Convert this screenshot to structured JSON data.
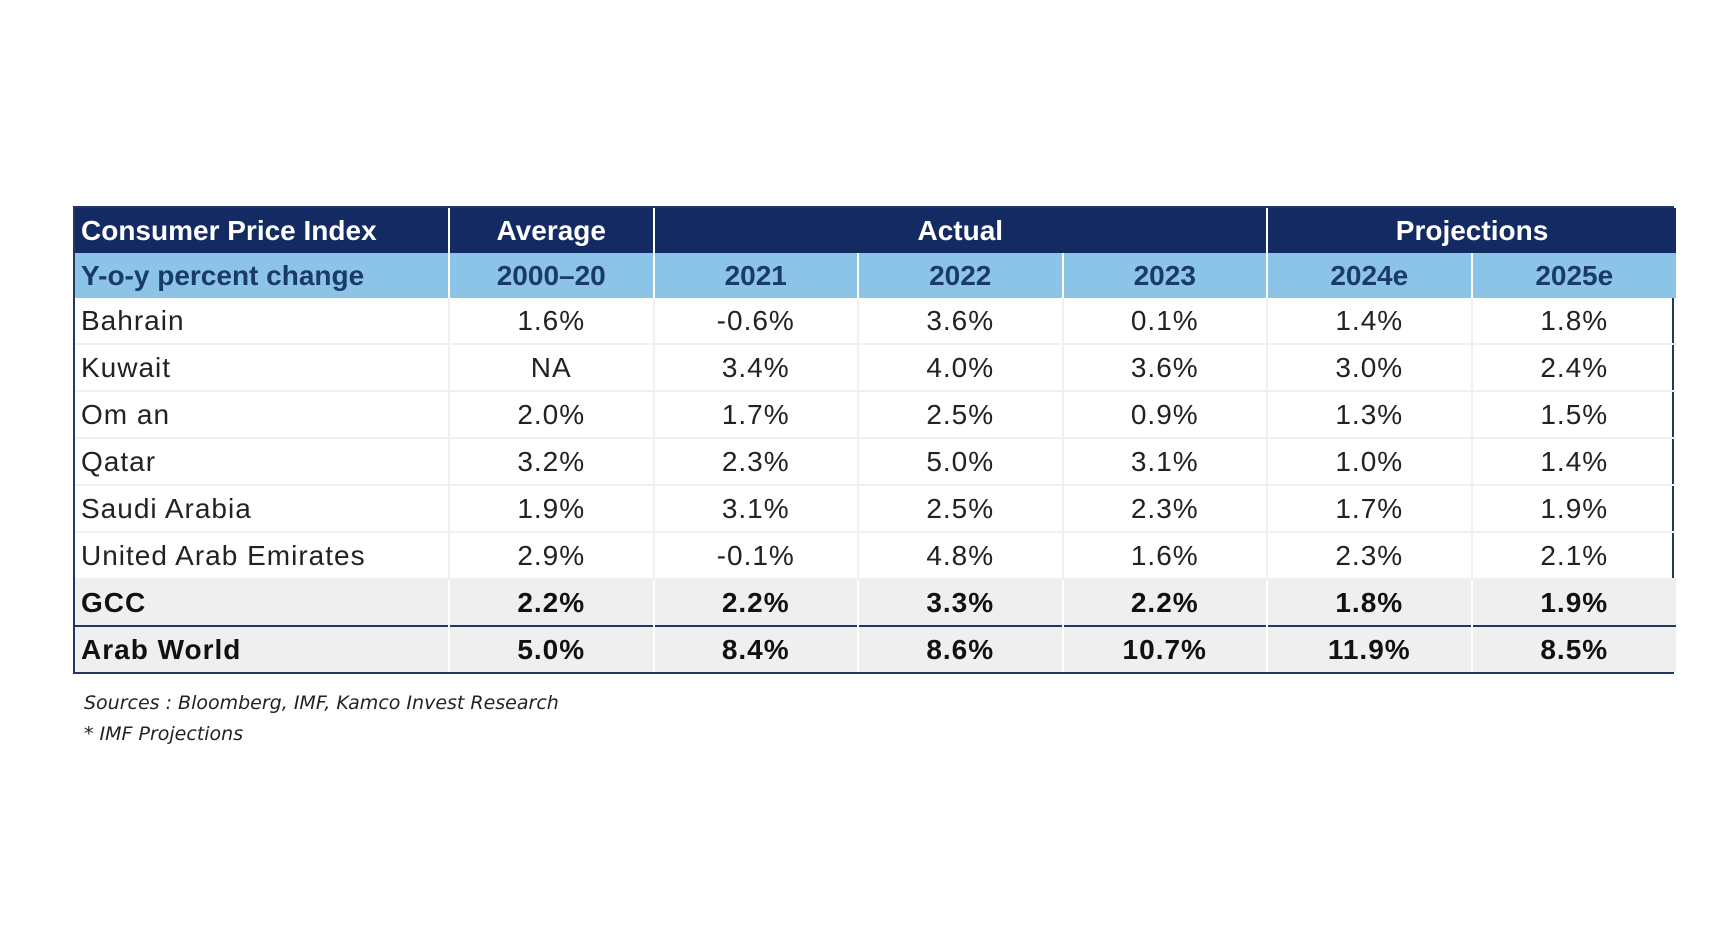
{
  "chart_data": {
    "type": "table",
    "header_row1": {
      "label": "Consumer Price Index",
      "average": "Average",
      "actual": "Actual",
      "projections": "Projections"
    },
    "header_row2": {
      "label": "Y-o-y percent change",
      "columns": [
        "2000–20",
        "2021",
        "2022",
        "2023",
        "2024e",
        "2025e"
      ]
    },
    "rows": [
      {
        "label": "Bahrain",
        "values": [
          "1.6%",
          "-0.6%",
          "3.6%",
          "0.1%",
          "1.4%",
          "1.8%"
        ]
      },
      {
        "label": "Kuwait",
        "values": [
          "NA",
          "3.4%",
          "4.0%",
          "3.6%",
          "3.0%",
          "2.4%"
        ]
      },
      {
        "label": "Om an",
        "values": [
          "2.0%",
          "1.7%",
          "2.5%",
          "0.9%",
          "1.3%",
          "1.5%"
        ]
      },
      {
        "label": "Qatar",
        "values": [
          "3.2%",
          "2.3%",
          "5.0%",
          "3.1%",
          "1.0%",
          "1.4%"
        ]
      },
      {
        "label": "Saudi Arabia",
        "values": [
          "1.9%",
          "3.1%",
          "2.5%",
          "2.3%",
          "1.7%",
          "1.9%"
        ]
      },
      {
        "label": "United Arab Emirates",
        "values": [
          "2.9%",
          "-0.1%",
          "4.8%",
          "1.6%",
          "2.3%",
          "2.1%"
        ]
      }
    ],
    "totals": [
      {
        "label": "GCC",
        "values": [
          "2.2%",
          "2.2%",
          "3.3%",
          "2.2%",
          "1.8%",
          "1.9%"
        ]
      },
      {
        "label": "Arab World",
        "values": [
          "5.0%",
          "8.4%",
          "8.6%",
          "10.7%",
          "11.9%",
          "8.5%"
        ]
      }
    ]
  },
  "notes": {
    "sources": "Sources : Bloomberg, IMF, Kamco Invest Research",
    "footnote": "* IMF Projections"
  },
  "colors": {
    "header_dark": "#132a63",
    "header_light": "#8cc4e8",
    "total_row_bg": "#efefef"
  }
}
